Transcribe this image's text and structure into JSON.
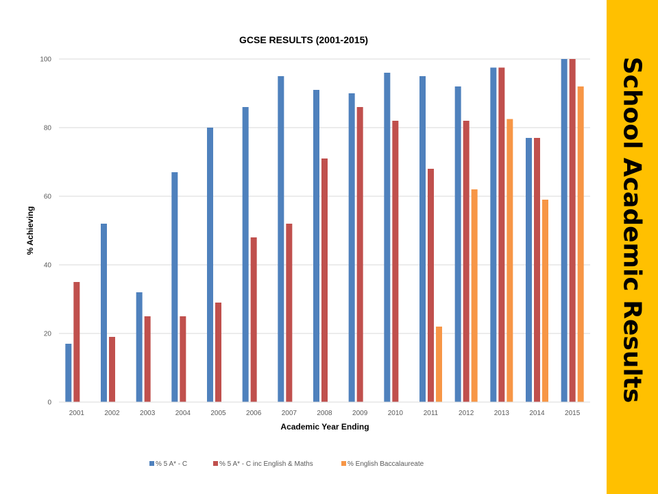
{
  "sidebar": {
    "title": "School Academic Results",
    "background": "#ffc000"
  },
  "chart_data": {
    "type": "bar",
    "title": "GCSE RESULTS (2001-2015)",
    "xlabel": "Academic Year Ending",
    "ylabel": "% Achieving",
    "ylim": [
      0,
      100
    ],
    "yticks": [
      0,
      20,
      40,
      60,
      80,
      100
    ],
    "grid": true,
    "legend_position": "bottom",
    "categories": [
      "2001",
      "2002",
      "2003",
      "2004",
      "2005",
      "2006",
      "2007",
      "2008",
      "2009",
      "2010",
      "2011",
      "2012",
      "2013",
      "2014",
      "2015"
    ],
    "series": [
      {
        "name": "% 5 A* - C",
        "color": "#4f81bd",
        "values": [
          17,
          52,
          32,
          67,
          80,
          86,
          95,
          91,
          90,
          96,
          95,
          92,
          97.5,
          77,
          100
        ]
      },
      {
        "name": "% 5 A* - C inc English & Maths",
        "color": "#c0504d",
        "values": [
          35,
          19,
          25,
          25,
          29,
          48,
          52,
          71,
          86,
          82,
          68,
          82,
          97.5,
          77,
          100
        ]
      },
      {
        "name": "% English Baccalaureate",
        "color": "#f79646",
        "values": [
          null,
          null,
          null,
          null,
          null,
          null,
          null,
          null,
          null,
          null,
          22,
          62,
          82.5,
          59,
          92
        ]
      }
    ]
  }
}
